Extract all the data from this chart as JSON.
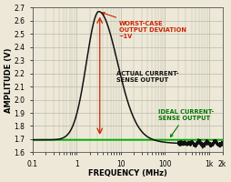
{
  "title": "",
  "xlabel": "FREQUENCY (MHz)",
  "ylabel": "AMPLITUDE (V)",
  "ideal_value": 1.695,
  "ideal_color": "#00aa00",
  "actual_color": "#111111",
  "annotation_color_red": "#cc2200",
  "annotation_color_green": "#007700",
  "annotation_color_black": "#111111",
  "xlim": [
    0.1,
    2000
  ],
  "ylim": [
    1.6,
    2.7
  ],
  "yticks": [
    1.6,
    1.7,
    1.8,
    1.9,
    2.0,
    2.1,
    2.2,
    2.3,
    2.4,
    2.5,
    2.6,
    2.7
  ],
  "background_color": "#ede8d8",
  "grid_color": "#bbbbaa",
  "peak_freq": 3.2,
  "peak_amp": 2.67,
  "baseline": 1.695,
  "post_baseline": 1.668
}
